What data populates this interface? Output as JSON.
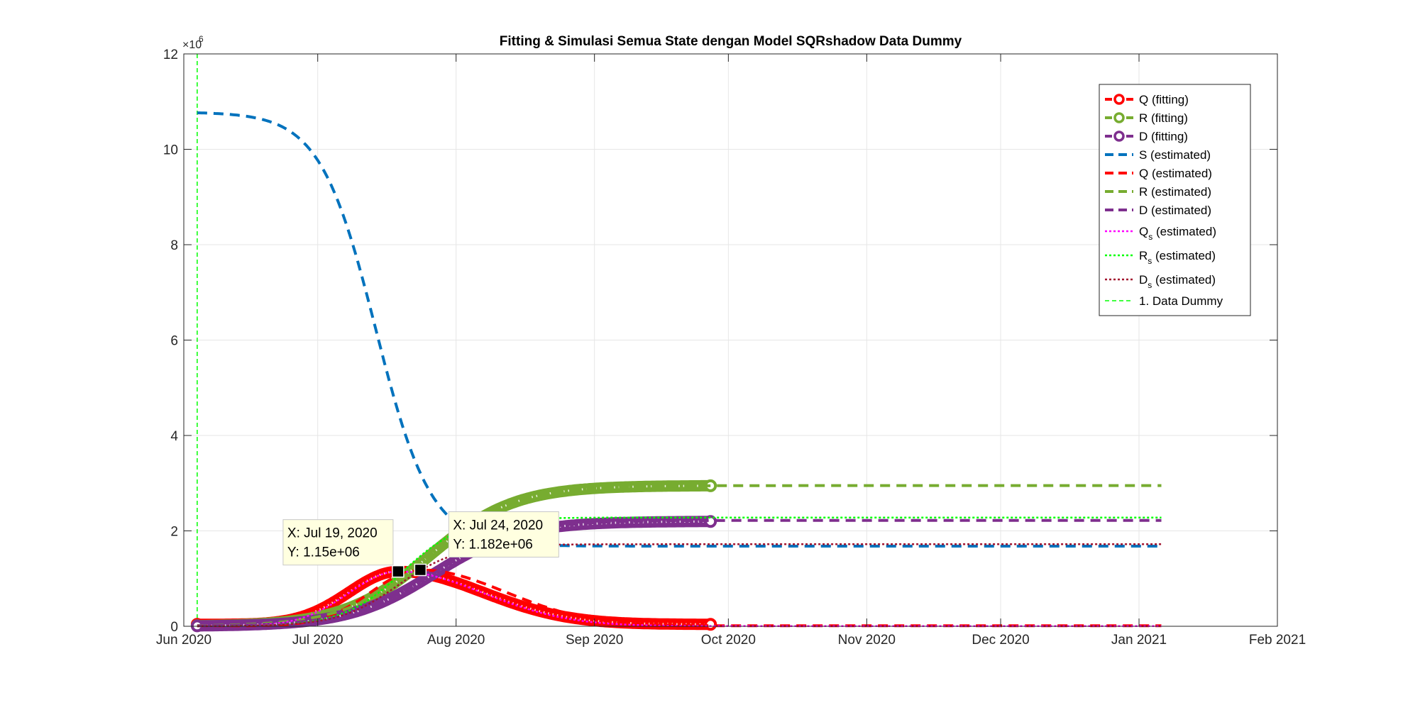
{
  "chart_data": {
    "type": "line",
    "title": "Fitting & Simulasi Semua State dengan Model SQRshadow Data Dummy",
    "xlabel": "",
    "ylabel": "",
    "x_ticks": [
      "Jun 2020",
      "Jul 2020",
      "Aug 2020",
      "Sep 2020",
      "Oct 2020",
      "Nov 2020",
      "Dec 2020",
      "Jan 2021",
      "Feb 2021"
    ],
    "x_range": [
      "2020-06-01",
      "2021-02-01"
    ],
    "y_ticks": [
      "0",
      "2",
      "4",
      "6",
      "8",
      "10",
      "12"
    ],
    "y_exponent_base": "×10",
    "y_exponent_power": "6",
    "ylim": [
      0,
      12000000
    ],
    "grid": true,
    "legend_position": "top-right",
    "data_dummy_date": "2020-06-04",
    "series": [
      {
        "name": "Q (fitting)",
        "color": "#ff0000",
        "style": "fitting",
        "start": "2020-06-04",
        "end": "2020-09-27",
        "peak": 1150000,
        "peak_date": "2020-07-19",
        "final": 40000
      },
      {
        "name": "R (fitting)",
        "color": "#77ac30",
        "style": "fitting",
        "start": "2020-06-04",
        "end": "2020-09-27",
        "final": 2950000,
        "midpoint_date": "2020-07-26",
        "rate": 0.105
      },
      {
        "name": "D (fitting)",
        "color": "#7e2f8e",
        "style": "fitting",
        "start": "2020-06-04",
        "end": "2020-09-27",
        "final": 2200000,
        "midpoint_date": "2020-07-27",
        "rate": 0.105
      },
      {
        "name": "S (estimated)",
        "color": "#0072bd",
        "style": "dashed",
        "start": "2020-06-04",
        "end": "2021-01-06",
        "initial": 10780000,
        "final": 1680000,
        "midpoint_date": "2020-07-14",
        "rate": 0.16
      },
      {
        "name": "Q (estimated)",
        "color": "#ff0000",
        "style": "dashed",
        "start": "2020-06-04",
        "end": "2021-01-06",
        "peak": 1182000,
        "peak_date": "2020-07-24",
        "final": 10000
      },
      {
        "name": "R (estimated)",
        "color": "#77ac30",
        "style": "dashed",
        "start": "2020-06-04",
        "end": "2021-01-06",
        "final": 2950000,
        "midpoint_date": "2020-07-26",
        "rate": 0.105
      },
      {
        "name": "D (estimated)",
        "color": "#7e2f8e",
        "style": "dashed",
        "start": "2020-06-04",
        "end": "2021-01-06",
        "final": 2220000,
        "midpoint_date": "2020-07-27",
        "rate": 0.105
      },
      {
        "name": "Q",
        "name_sub": "s",
        "name_rest": " (estimated)",
        "color": "#ff00ff",
        "style": "dotted",
        "start": "2020-06-04",
        "end": "2021-01-06",
        "peak": 1150000,
        "peak_date": "2020-07-19",
        "final": 5000
      },
      {
        "name": "R",
        "name_sub": "s",
        "name_rest": " (estimated)",
        "color": "#00ff00",
        "style": "dotted",
        "start": "2020-06-04",
        "end": "2021-01-06",
        "final": 2280000,
        "midpoint_date": "2020-07-20",
        "rate": 0.15
      },
      {
        "name": "D",
        "name_sub": "s",
        "name_rest": " (estimated)",
        "color": "#a2142f",
        "style": "dotted",
        "start": "2020-06-04",
        "end": "2021-01-06",
        "final": 1720000,
        "midpoint_date": "2020-07-19",
        "rate": 0.15
      },
      {
        "name": "1. Data Dummy",
        "color": "#00ff00",
        "style": "vline"
      }
    ],
    "datatips": [
      {
        "x_label": "X: Jul 19, 2020",
        "y_label": "Y: 1.15e+06",
        "date": "2020-07-19",
        "value": 1150000
      },
      {
        "x_label": "X: Jul 24, 2020",
        "y_label": "Y: 1.182e+06",
        "date": "2020-07-24",
        "value": 1182000
      }
    ]
  }
}
